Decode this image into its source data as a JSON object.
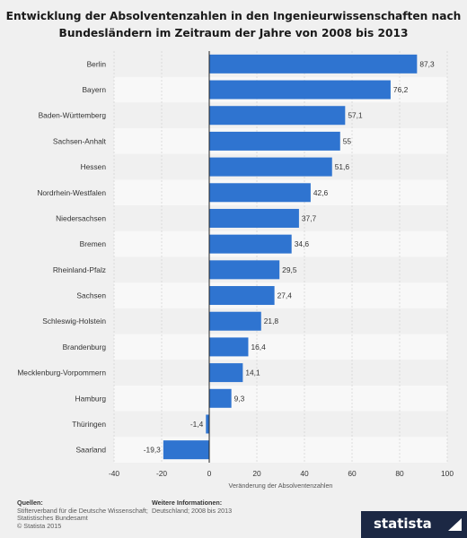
{
  "header": {
    "title_line1": "Entwicklung der Absolventenzahlen in den Ingenieurwissenschaften nach",
    "title_line2": "Bundesländern im Zeitraum der Jahre von 2008 bis 2013"
  },
  "footer": {
    "sources_heading": "Quellen:",
    "sources_line1": "Stifterverband für die Deutsche Wissenschaft;",
    "sources_line2": "Statistisches Bundesamt",
    "sources_line3": "© Statista 2015",
    "info_heading": "Weitere Informationen:",
    "info_line1": "Deutschland; 2008 bis 2013"
  },
  "brand": {
    "name": "statista",
    "mark_icon": "statista-arrow-icon"
  },
  "colors": {
    "bar": "#2f74d0",
    "background": "#f0f0f0",
    "band_light": "#f8f8f8",
    "brand_bg": "#1c2844"
  },
  "chart_data": {
    "type": "bar",
    "orientation": "horizontal",
    "categories": [
      "Berlin",
      "Bayern",
      "Baden-Württemberg",
      "Sachsen-Anhalt",
      "Hessen",
      "Nordrhein-Westfalen",
      "Niedersachsen",
      "Bremen",
      "Rheinland-Pfalz",
      "Sachsen",
      "Schleswig-Holstein",
      "Brandenburg",
      "Mecklenburg-Vorpommern",
      "Hamburg",
      "Thüringen",
      "Saarland"
    ],
    "values": [
      87.3,
      76.2,
      57.1,
      55,
      51.6,
      42.6,
      37.7,
      34.6,
      29.5,
      27.4,
      21.8,
      16.4,
      14.1,
      9.3,
      -1.4,
      -19.3
    ],
    "value_labels": [
      "87,3",
      "76,2",
      "57,1",
      "55",
      "51,6",
      "42,6",
      "37,7",
      "34,6",
      "29,5",
      "27,4",
      "21,8",
      "16,4",
      "14,1",
      "9,3",
      "-1,4",
      "-19,3"
    ],
    "xlabel": "Veränderung der Absolventenzahlen",
    "ylabel": "",
    "xlim": [
      -40,
      100
    ],
    "xticks": [
      -40,
      -20,
      0,
      20,
      40,
      60,
      80,
      100
    ],
    "xtick_labels": [
      "-40",
      "-20",
      "0",
      "20",
      "40",
      "60",
      "80",
      "100"
    ],
    "grid": true
  }
}
